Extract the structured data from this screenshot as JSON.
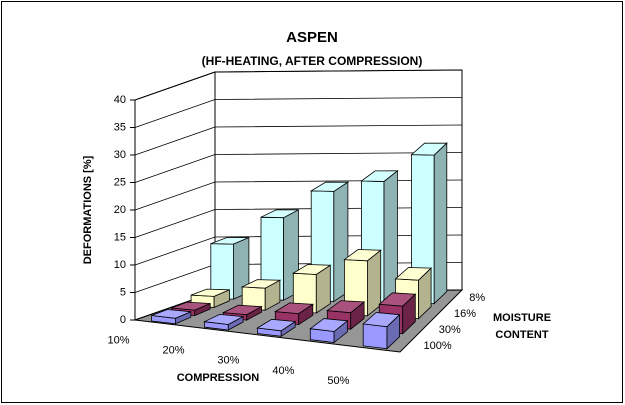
{
  "chart_data": {
    "type": "bar3d",
    "title": "ASPEN",
    "subtitle": "(HF-HEATING, AFTER COMPRESSION)",
    "y_label": "DEFORMATIONS [%]",
    "x_label": "COMPRESSION",
    "depth_label": [
      "MOISTURE",
      "CONTENT"
    ],
    "categories": [
      "10%",
      "20%",
      "30%",
      "40%",
      "50%"
    ],
    "series": [
      {
        "name": "8%",
        "color": "#ccffff",
        "values": [
          10,
          15,
          20,
          22,
          27
        ]
      },
      {
        "name": "16%",
        "color": "#ffffcc",
        "values": [
          2,
          4,
          7,
          10,
          7
        ]
      },
      {
        "name": "30%",
        "color": "#993366",
        "values": [
          1,
          1,
          2,
          3,
          5
        ]
      },
      {
        "name": "100%",
        "color": "#9999ff",
        "values": [
          1,
          1,
          1,
          2,
          4
        ]
      }
    ],
    "ylim": [
      0,
      40
    ],
    "yticks": [
      0,
      5,
      10,
      15,
      20,
      25,
      30,
      35,
      40
    ],
    "grid": true
  }
}
